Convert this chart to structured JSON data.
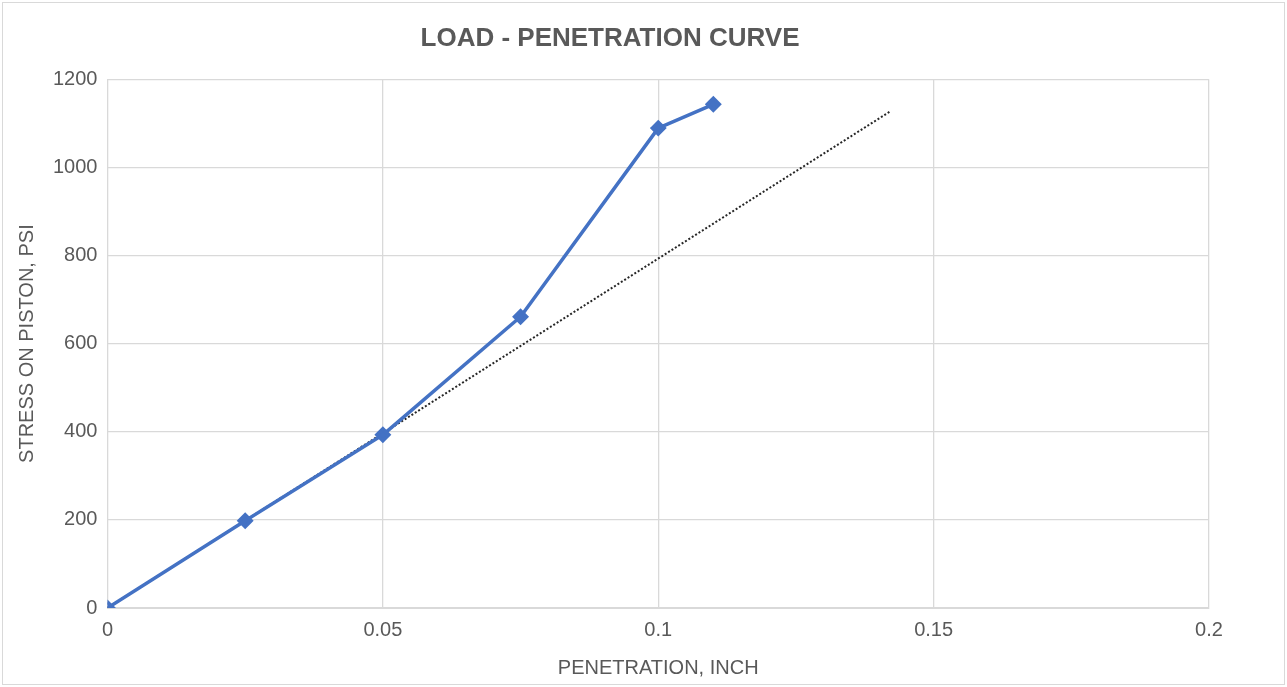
{
  "chart_data": {
    "type": "line",
    "title": "LOAD - PENETRATION CURVE",
    "xlabel": "PENETRATION, INCH",
    "ylabel": "STRESS ON PISTON, PSI",
    "series": [
      {
        "color": "#4472c4",
        "x": [
          0,
          0.025,
          0.05,
          0.075,
          0.1,
          0.11
        ],
        "values": [
          0,
          198,
          393,
          661,
          1089,
          1143
        ],
        "marker": "diamond",
        "line_style": "solid"
      },
      {
        "color": "#262626",
        "x": [
          0,
          0.142
        ],
        "values": [
          0,
          1126
        ],
        "marker": "none",
        "line_style": "dotted"
      }
    ],
    "xlim": [
      0,
      0.2
    ],
    "xticks": [
      0,
      0.05,
      0.1,
      0.15,
      0.2
    ],
    "ylim": [
      0,
      1200
    ],
    "yticks": [
      0,
      200,
      400,
      600,
      800,
      1000,
      1200
    ],
    "grid": true,
    "legend": false
  }
}
